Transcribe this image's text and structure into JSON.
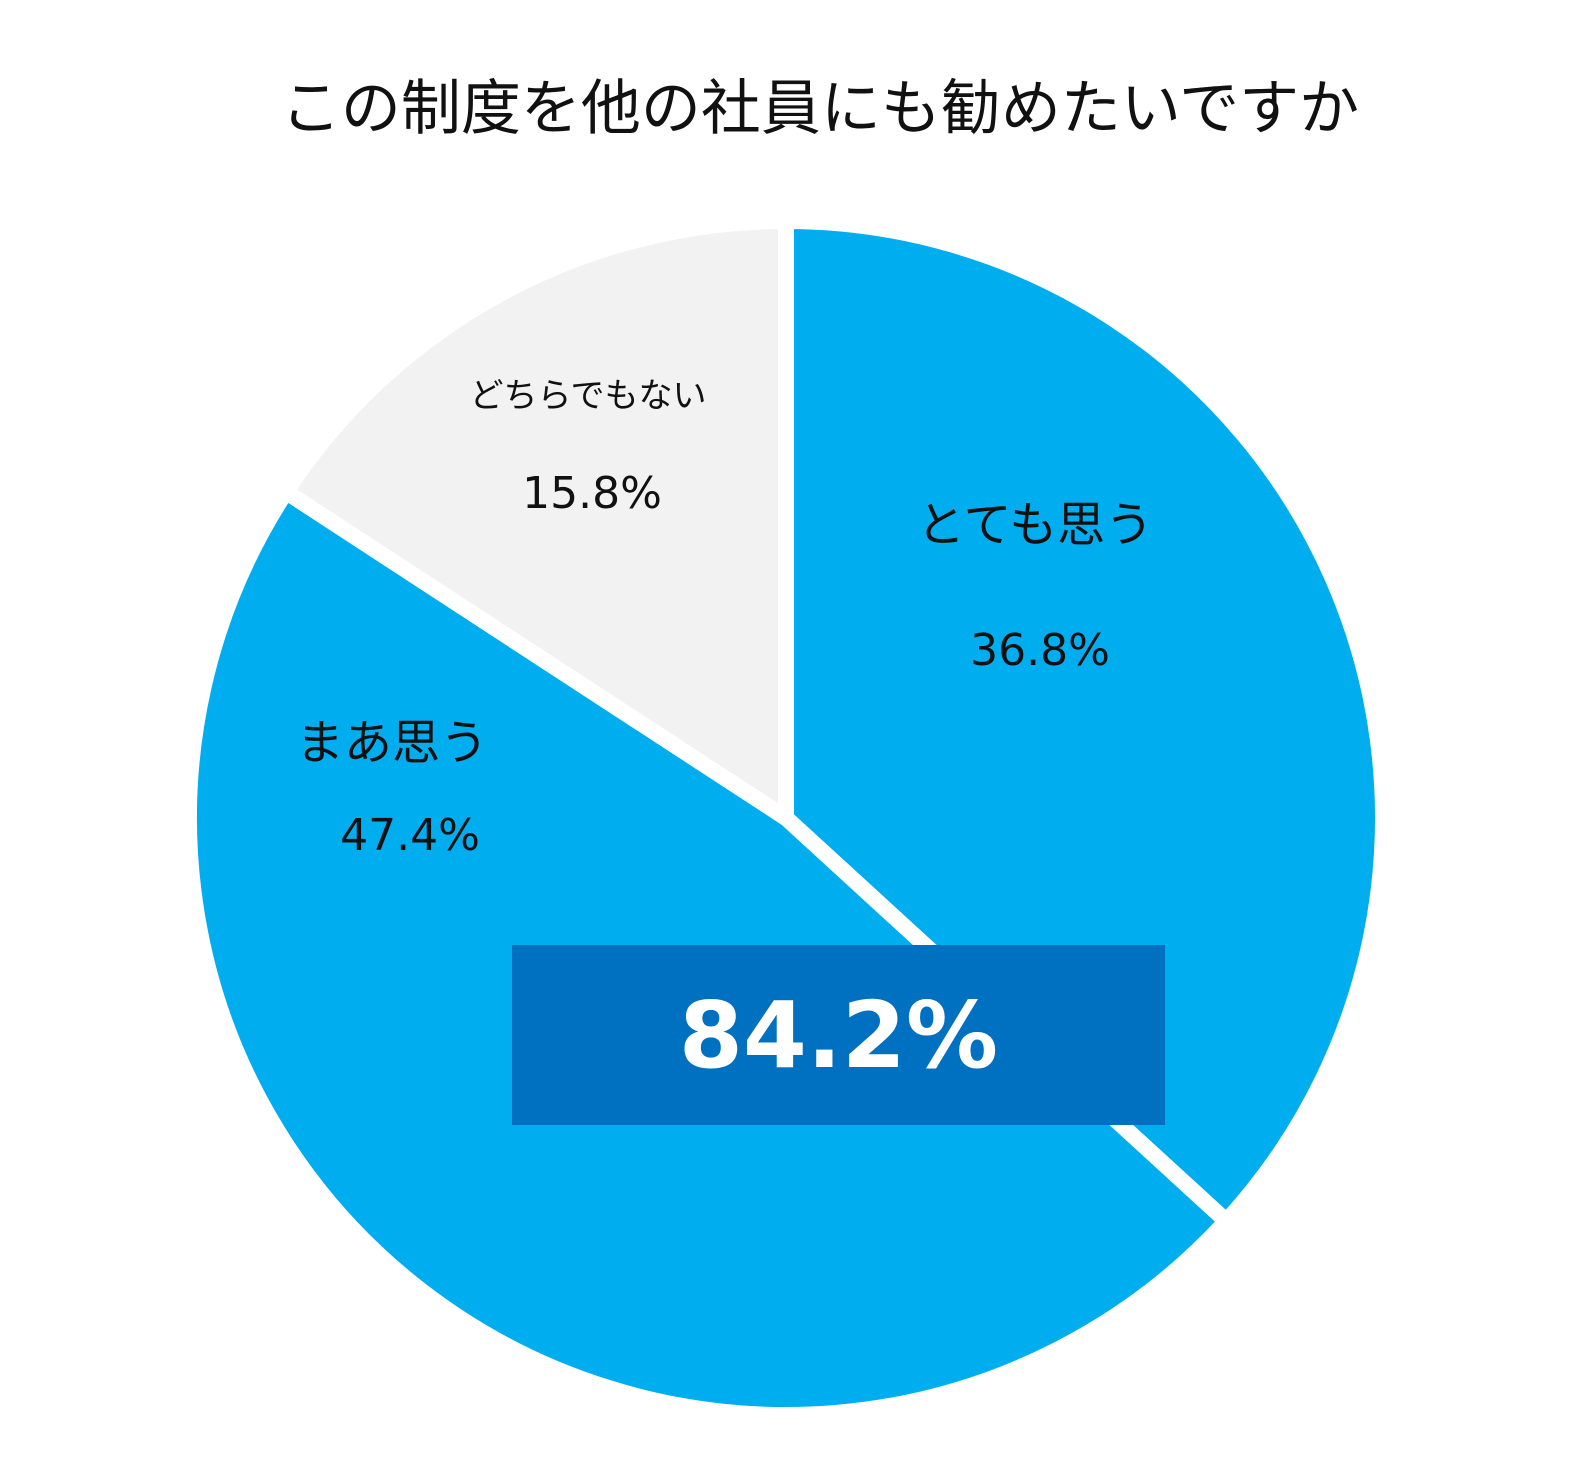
{
  "chart_data": {
    "type": "pie",
    "title": "この制度を他の社員にも勧めたいですか",
    "slices": [
      {
        "label": "とても思う",
        "value": 36.8,
        "value_label": "36.8%",
        "color": "#00AEEF"
      },
      {
        "label": "まあ思う",
        "value": 47.4,
        "value_label": "47.4%",
        "color": "#00AEEF"
      },
      {
        "label": "どちらでもない",
        "value": 15.8,
        "value_label": "15.8%",
        "color": "#F2F2F2"
      }
    ],
    "start_angle": "12 o'clock",
    "direction": "clockwise",
    "highlight": {
      "text": "84.2%",
      "background": "#0070C0",
      "text_color": "#FFFFFF"
    }
  }
}
